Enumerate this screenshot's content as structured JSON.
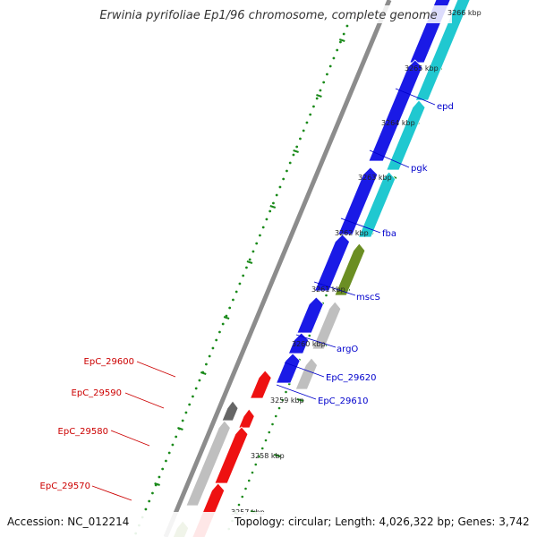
{
  "title": "Erwinia pyrifoliae Ep1/96 chromosome, complete genome",
  "footer": {
    "accession": "Accession: NC_012214",
    "summary": "Topology: circular; Length: 4,026,322 bp; Genes: 3,742"
  },
  "scale_labels": [
    "3265 kbp",
    "3264 kbp",
    "3263 kbp",
    "3262 kbp",
    "3261 kbp",
    "3260 kbp",
    "3259 kbp",
    "3258 kbp",
    "3257 kbp",
    "3266 kbp"
  ],
  "genes_blue": [
    "epd",
    "pgk",
    "fba",
    "mscS",
    "argO",
    "EpC_29620",
    "EpC_29610"
  ],
  "genes_red": [
    "EpC_29600",
    "EpC_29590",
    "EpC_29580",
    "EpC_29570"
  ],
  "colors": {
    "backbone": "#8c8c8c",
    "forward_strand": "#1a1ae6",
    "cds_cyan": "#20c8d0",
    "cds_olive": "#6b8e23",
    "cds_gray": "#bfbfbf",
    "reverse_strand": "#ee1111",
    "ticks": "#1a8a1a"
  }
}
